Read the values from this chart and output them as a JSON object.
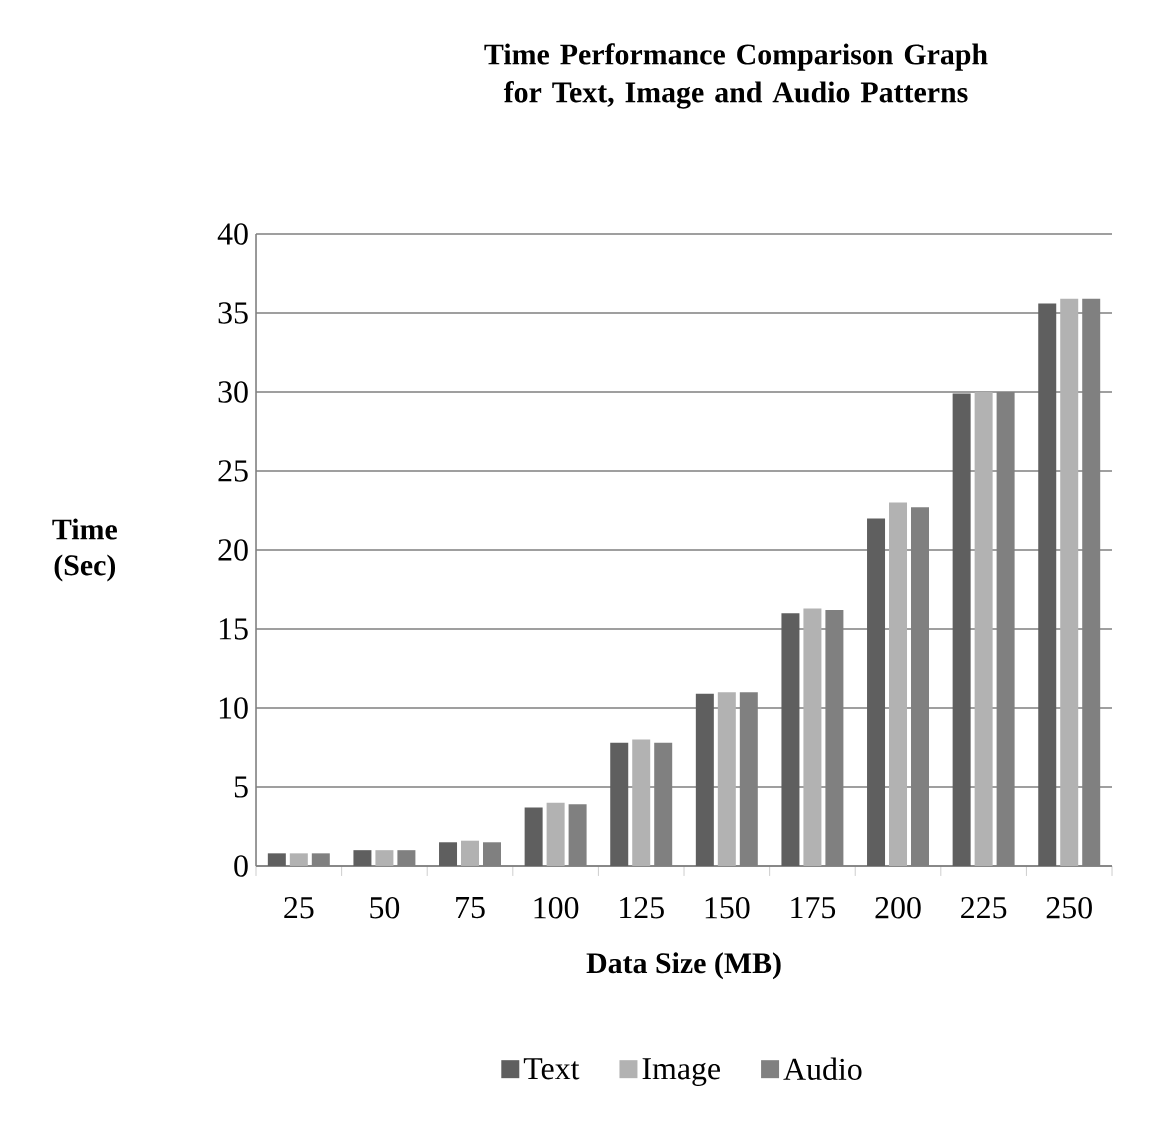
{
  "chart_data": {
    "type": "bar",
    "title": "Time Performance Comparison Graph for Text, Image and Audio Patterns",
    "xlabel": "Data Size (MB)",
    "ylabel": "Time (Sec)",
    "categories": [
      "25",
      "50",
      "75",
      "100",
      "125",
      "150",
      "175",
      "200",
      "225",
      "250"
    ],
    "series": [
      {
        "name": "Text",
        "color": "#5f5f5f",
        "values": [
          0.8,
          1.0,
          1.5,
          3.7,
          7.8,
          10.9,
          16.0,
          22.0,
          29.9,
          35.6
        ]
      },
      {
        "name": "Image",
        "color": "#b2b2b2",
        "values": [
          0.8,
          1.0,
          1.6,
          4.0,
          8.0,
          11.0,
          16.3,
          23.0,
          30.0,
          35.9
        ]
      },
      {
        "name": "Audio",
        "color": "#808080",
        "values": [
          0.8,
          1.0,
          1.5,
          3.9,
          7.8,
          11.0,
          16.2,
          22.7,
          30.0,
          35.9
        ]
      }
    ],
    "ylim": [
      0,
      40
    ],
    "yticks": [
      0,
      5,
      10,
      15,
      20,
      25,
      30,
      35,
      40
    ],
    "grid": "y",
    "legend": "bottom"
  }
}
